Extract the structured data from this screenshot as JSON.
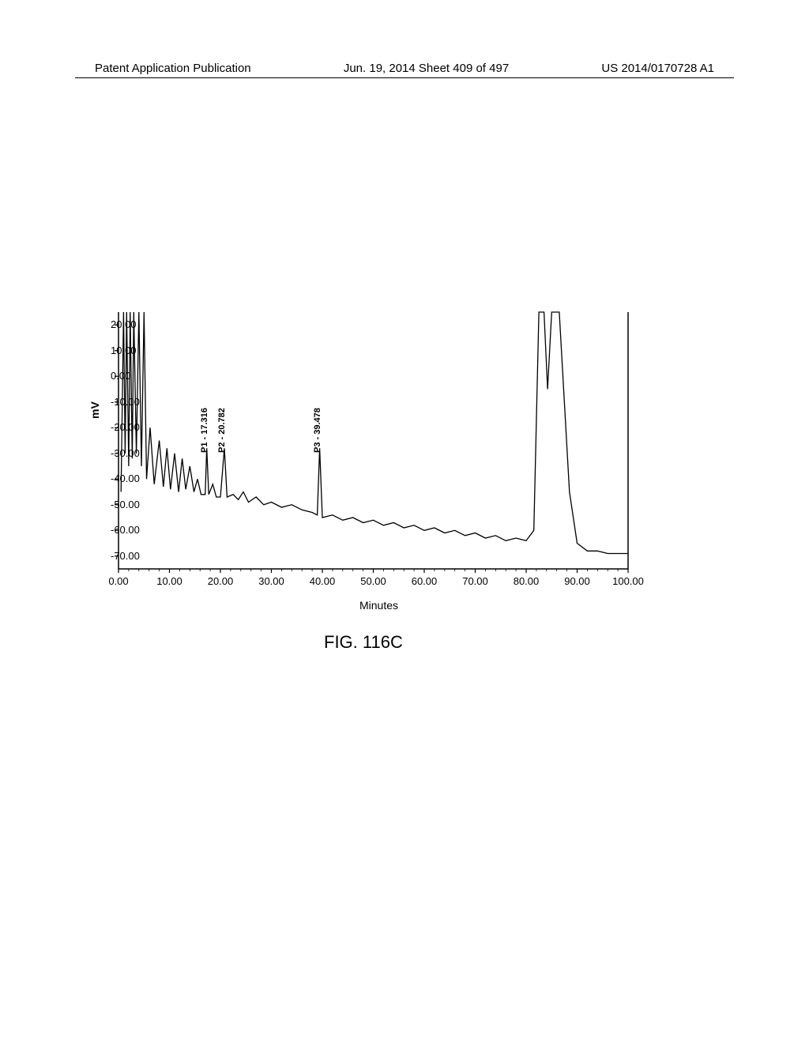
{
  "header": {
    "left": "Patent Application Publication",
    "center": "Jun. 19, 2014  Sheet 409 of 497",
    "right": "US 2014/0170728 A1"
  },
  "chart": {
    "type": "line",
    "xlabel": "Minutes",
    "ylabel": "mV",
    "xlim": [
      0,
      100
    ],
    "ylim": [
      -75,
      25
    ],
    "x_ticks": [
      0.0,
      10.0,
      20.0,
      30.0,
      40.0,
      50.0,
      60.0,
      70.0,
      80.0,
      90.0,
      100.0
    ],
    "y_ticks": [
      20.0,
      10.0,
      0.0,
      -10.0,
      -20.0,
      -30.0,
      -40.0,
      -50.0,
      -60.0,
      -70.0
    ],
    "line_color": "#000000",
    "line_width": 1.3,
    "background_color": "#ffffff",
    "axis_color": "#000000",
    "tick_fontsize": 13,
    "label_fontsize": 14,
    "peak_labels": [
      {
        "text": "P1 - 17.316",
        "x": 17.316
      },
      {
        "text": "P2 - 20.782",
        "x": 20.782
      },
      {
        "text": "P3 - 39.478",
        "x": 39.478
      }
    ],
    "series": [
      {
        "x": 0.5,
        "y": -45
      },
      {
        "x": 1.0,
        "y": 25
      },
      {
        "x": 1.3,
        "y": -30
      },
      {
        "x": 1.6,
        "y": 25
      },
      {
        "x": 2.0,
        "y": -35
      },
      {
        "x": 2.3,
        "y": 25
      },
      {
        "x": 2.7,
        "y": -32
      },
      {
        "x": 3.0,
        "y": 25
      },
      {
        "x": 3.5,
        "y": -30
      },
      {
        "x": 4.0,
        "y": 25
      },
      {
        "x": 4.5,
        "y": -35
      },
      {
        "x": 5.0,
        "y": 25
      },
      {
        "x": 5.5,
        "y": -40
      },
      {
        "x": 6.2,
        "y": -20
      },
      {
        "x": 7.0,
        "y": -42
      },
      {
        "x": 8.0,
        "y": -25
      },
      {
        "x": 8.8,
        "y": -43
      },
      {
        "x": 9.5,
        "y": -28
      },
      {
        "x": 10.2,
        "y": -44
      },
      {
        "x": 11.0,
        "y": -30
      },
      {
        "x": 11.8,
        "y": -45
      },
      {
        "x": 12.5,
        "y": -32
      },
      {
        "x": 13.2,
        "y": -44
      },
      {
        "x": 14.0,
        "y": -35
      },
      {
        "x": 14.8,
        "y": -45
      },
      {
        "x": 15.5,
        "y": -40
      },
      {
        "x": 16.2,
        "y": -46
      },
      {
        "x": 17.0,
        "y": -46
      },
      {
        "x": 17.316,
        "y": -28
      },
      {
        "x": 17.7,
        "y": -46
      },
      {
        "x": 18.5,
        "y": -42
      },
      {
        "x": 19.2,
        "y": -47
      },
      {
        "x": 20.0,
        "y": -47
      },
      {
        "x": 20.782,
        "y": -28
      },
      {
        "x": 21.3,
        "y": -47
      },
      {
        "x": 22.5,
        "y": -46
      },
      {
        "x": 23.5,
        "y": -48
      },
      {
        "x": 24.5,
        "y": -45
      },
      {
        "x": 25.5,
        "y": -49
      },
      {
        "x": 27.0,
        "y": -47
      },
      {
        "x": 28.5,
        "y": -50
      },
      {
        "x": 30.0,
        "y": -49
      },
      {
        "x": 32.0,
        "y": -51
      },
      {
        "x": 34.0,
        "y": -50
      },
      {
        "x": 36.0,
        "y": -52
      },
      {
        "x": 38.0,
        "y": -53
      },
      {
        "x": 39.0,
        "y": -54
      },
      {
        "x": 39.478,
        "y": -28
      },
      {
        "x": 40.0,
        "y": -55
      },
      {
        "x": 42.0,
        "y": -54
      },
      {
        "x": 44.0,
        "y": -56
      },
      {
        "x": 46.0,
        "y": -55
      },
      {
        "x": 48.0,
        "y": -57
      },
      {
        "x": 50.0,
        "y": -56
      },
      {
        "x": 52.0,
        "y": -58
      },
      {
        "x": 54.0,
        "y": -57
      },
      {
        "x": 56.0,
        "y": -59
      },
      {
        "x": 58.0,
        "y": -58
      },
      {
        "x": 60.0,
        "y": -60
      },
      {
        "x": 62.0,
        "y": -59
      },
      {
        "x": 64.0,
        "y": -61
      },
      {
        "x": 66.0,
        "y": -60
      },
      {
        "x": 68.0,
        "y": -62
      },
      {
        "x": 70.0,
        "y": -61
      },
      {
        "x": 72.0,
        "y": -63
      },
      {
        "x": 74.0,
        "y": -62
      },
      {
        "x": 76.0,
        "y": -64
      },
      {
        "x": 78.0,
        "y": -63
      },
      {
        "x": 80.0,
        "y": -64
      },
      {
        "x": 81.5,
        "y": -60
      },
      {
        "x": 82.5,
        "y": 25
      },
      {
        "x": 83.5,
        "y": 25
      },
      {
        "x": 84.2,
        "y": -5
      },
      {
        "x": 85.0,
        "y": 25
      },
      {
        "x": 86.5,
        "y": 25
      },
      {
        "x": 88.5,
        "y": -45
      },
      {
        "x": 90.0,
        "y": -65
      },
      {
        "x": 92.0,
        "y": -68
      },
      {
        "x": 94.0,
        "y": -68
      },
      {
        "x": 96.0,
        "y": -69
      },
      {
        "x": 98.0,
        "y": -69
      },
      {
        "x": 100.0,
        "y": -69
      }
    ]
  },
  "figure_caption": "FIG. 116C"
}
